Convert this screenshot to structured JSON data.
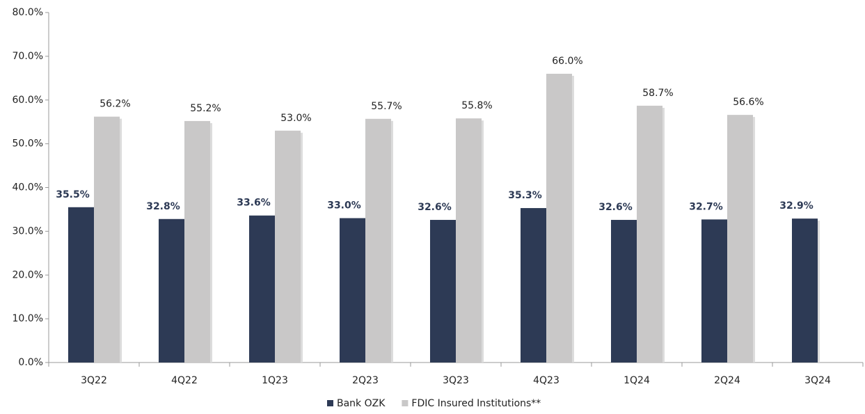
{
  "chart_data": {
    "type": "bar",
    "categories": [
      "3Q22",
      "4Q22",
      "1Q23",
      "2Q23",
      "3Q23",
      "4Q23",
      "1Q24",
      "2Q24",
      "3Q24"
    ],
    "series": [
      {
        "name": "Bank OZK",
        "color": "#2d3a55",
        "values": [
          35.5,
          32.8,
          33.6,
          33.0,
          32.6,
          35.3,
          32.6,
          32.7,
          32.9
        ],
        "value_labels": [
          "35.5%",
          "32.8%",
          "33.6%",
          "33.0%",
          "32.6%",
          "35.3%",
          "32.6%",
          "32.7%",
          "32.9%"
        ]
      },
      {
        "name": "FDIC Insured Institutions**",
        "color": "#c9c8c8",
        "values": [
          56.2,
          55.2,
          53.0,
          55.7,
          55.8,
          66.0,
          58.7,
          56.6,
          null
        ],
        "value_labels": [
          "56.2%",
          "55.2%",
          "53.0%",
          "55.7%",
          "55.8%",
          "66.0%",
          "58.7%",
          "56.6%",
          null
        ]
      }
    ],
    "ylim": [
      0,
      80
    ],
    "yticks": [
      {
        "value": 0,
        "label": "0.0%"
      },
      {
        "value": 10,
        "label": "10.0%"
      },
      {
        "value": 20,
        "label": "20.0%"
      },
      {
        "value": 30,
        "label": "30.0%"
      },
      {
        "value": 40,
        "label": "40.0%"
      },
      {
        "value": 50,
        "label": "50.0%"
      },
      {
        "value": 60,
        "label": "60.0%"
      },
      {
        "value": 70,
        "label": "70.0%"
      },
      {
        "value": 80,
        "label": "80.0%"
      }
    ],
    "grid": false,
    "legend": "bottom"
  }
}
